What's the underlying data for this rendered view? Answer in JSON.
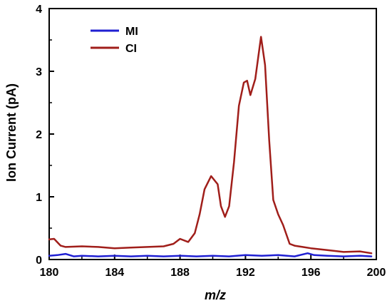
{
  "chart_data": {
    "type": "line",
    "xlabel": "m/z",
    "ylabel": "Ion Current (pA)",
    "xlim": [
      180,
      200
    ],
    "ylim": [
      0,
      4
    ],
    "xticks": [
      180,
      184,
      188,
      192,
      196,
      200
    ],
    "yticks": [
      0,
      1,
      2,
      3,
      4
    ],
    "legend_position": "top-left",
    "grid": false,
    "series": [
      {
        "name": "MI",
        "color": "#1f1fd2",
        "x": [
          180.0,
          180.5,
          181.0,
          181.5,
          182.0,
          183.0,
          184.0,
          185.0,
          186.0,
          187.0,
          188.0,
          189.0,
          190.0,
          191.0,
          192.0,
          193.0,
          194.0,
          195.0,
          195.8,
          196.2,
          197.0,
          198.0,
          199.0,
          199.7
        ],
        "y": [
          0.06,
          0.07,
          0.09,
          0.05,
          0.06,
          0.05,
          0.06,
          0.05,
          0.06,
          0.05,
          0.06,
          0.05,
          0.06,
          0.05,
          0.07,
          0.06,
          0.07,
          0.05,
          0.1,
          0.07,
          0.06,
          0.05,
          0.06,
          0.05
        ]
      },
      {
        "name": "CI",
        "color": "#a01e1a",
        "x": [
          180.0,
          180.3,
          180.7,
          181.0,
          182.0,
          183.0,
          184.0,
          185.0,
          186.0,
          187.0,
          187.6,
          188.0,
          188.5,
          188.9,
          189.2,
          189.5,
          189.9,
          190.3,
          190.5,
          190.75,
          191.0,
          191.3,
          191.6,
          191.9,
          192.1,
          192.3,
          192.6,
          192.95,
          193.2,
          193.45,
          193.7,
          194.0,
          194.3,
          194.7,
          195.0,
          195.5,
          196.0,
          197.0,
          198.0,
          199.0,
          199.7
        ],
        "y": [
          0.32,
          0.33,
          0.22,
          0.2,
          0.21,
          0.2,
          0.18,
          0.19,
          0.2,
          0.21,
          0.25,
          0.33,
          0.28,
          0.42,
          0.72,
          1.12,
          1.33,
          1.2,
          0.85,
          0.68,
          0.85,
          1.55,
          2.45,
          2.82,
          2.85,
          2.62,
          2.88,
          3.55,
          3.1,
          1.9,
          0.95,
          0.72,
          0.55,
          0.25,
          0.22,
          0.2,
          0.18,
          0.15,
          0.12,
          0.13,
          0.1
        ]
      }
    ]
  }
}
